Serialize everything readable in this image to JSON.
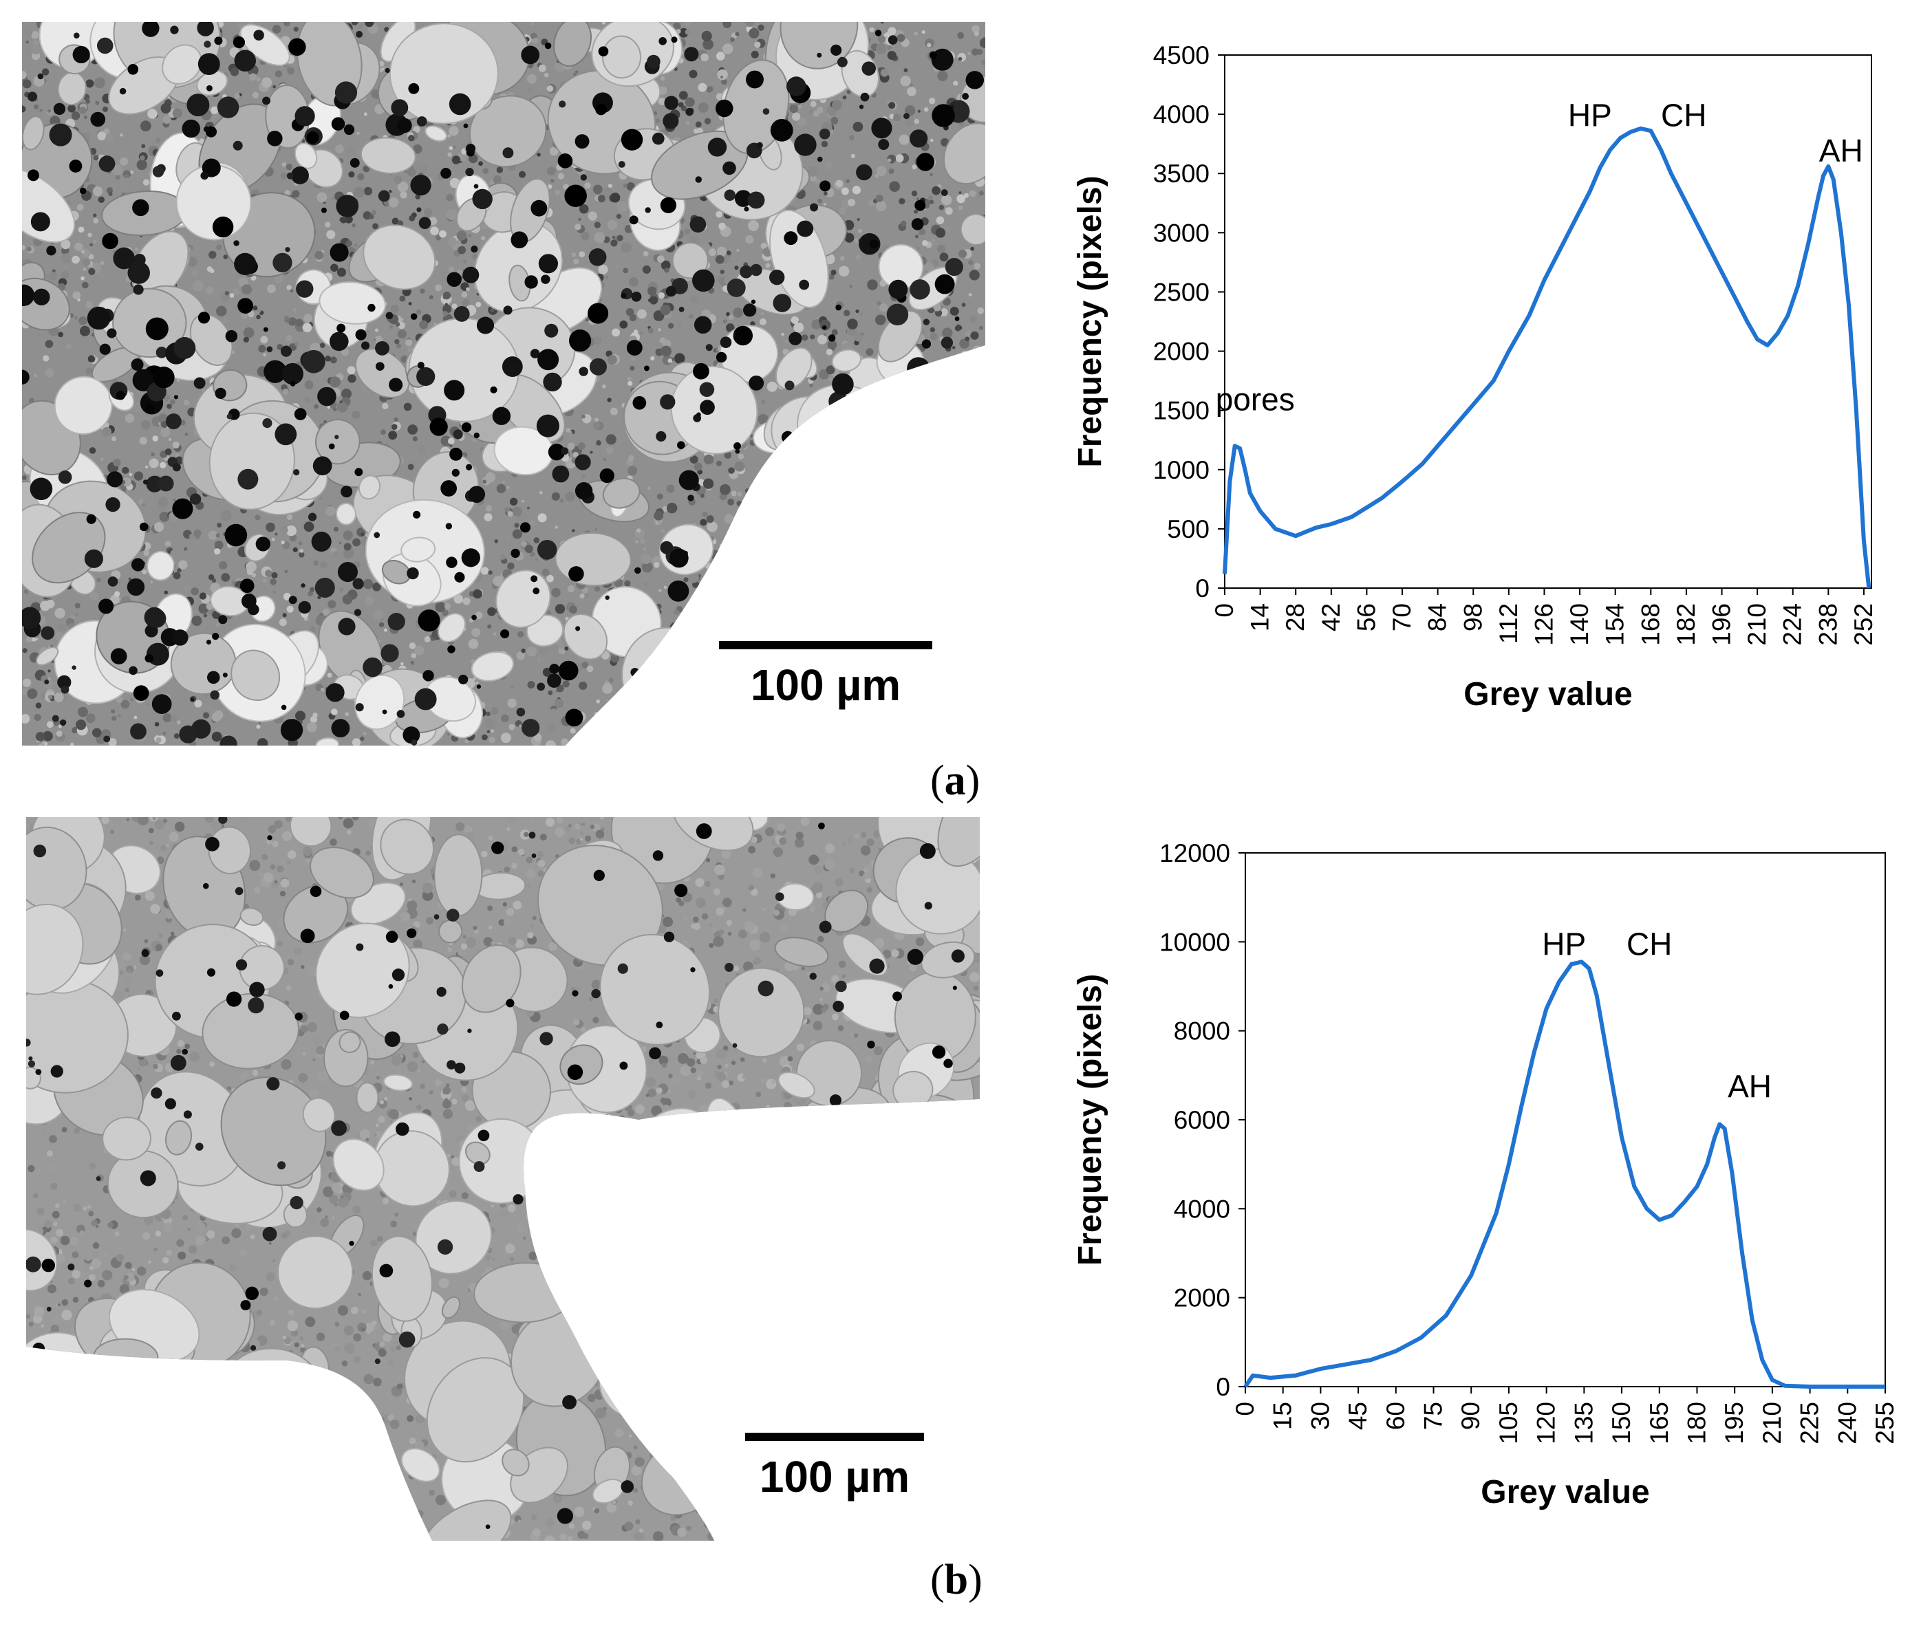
{
  "panels": [
    {
      "id": "a",
      "label": "a",
      "scale_bar": "100 µm",
      "chart_data": {
        "type": "line",
        "xlabel": "Grey value",
        "ylabel": "Frequency (pixels)",
        "xlim": [
          0,
          255
        ],
        "ylim": [
          0,
          4500
        ],
        "xticks": [
          0,
          14,
          28,
          42,
          56,
          70,
          84,
          98,
          112,
          126,
          140,
          154,
          168,
          182,
          196,
          210,
          224,
          238,
          252
        ],
        "yticks": [
          0,
          500,
          1000,
          1500,
          2000,
          2500,
          3000,
          3500,
          4000,
          4500
        ],
        "line_color": "#1f73d2",
        "x": [
          0,
          2,
          4,
          6,
          8,
          10,
          14,
          20,
          28,
          36,
          42,
          50,
          56,
          62,
          70,
          78,
          84,
          92,
          98,
          106,
          112,
          120,
          126,
          132,
          138,
          144,
          148,
          152,
          156,
          160,
          164,
          168,
          172,
          176,
          182,
          188,
          194,
          200,
          206,
          210,
          214,
          218,
          222,
          226,
          230,
          234,
          236,
          238,
          240,
          243,
          246,
          249,
          252,
          254
        ],
        "y": [
          120,
          900,
          1200,
          1180,
          1000,
          800,
          650,
          500,
          440,
          510,
          540,
          600,
          680,
          760,
          900,
          1050,
          1200,
          1400,
          1550,
          1750,
          2000,
          2300,
          2600,
          2850,
          3100,
          3350,
          3550,
          3700,
          3800,
          3850,
          3880,
          3860,
          3700,
          3500,
          3250,
          3000,
          2750,
          2500,
          2250,
          2100,
          2050,
          2150,
          2300,
          2550,
          2900,
          3300,
          3480,
          3560,
          3450,
          3000,
          2400,
          1500,
          400,
          0
        ],
        "annotations": [
          {
            "text": "pores",
            "x": 12,
            "y": 1500
          },
          {
            "text": "HP",
            "x": 144,
            "y": 3900
          },
          {
            "text": "CH",
            "x": 181,
            "y": 3900
          },
          {
            "text": "AH",
            "x": 243,
            "y": 3600
          }
        ]
      }
    },
    {
      "id": "b",
      "label": "b",
      "scale_bar": "100 µm",
      "chart_data": {
        "type": "line",
        "xlabel": "Grey value",
        "ylabel": "Frequency (pixels)",
        "xlim": [
          0,
          255
        ],
        "ylim": [
          0,
          12000
        ],
        "xticks": [
          0,
          15,
          30,
          45,
          60,
          75,
          90,
          105,
          120,
          135,
          150,
          165,
          180,
          195,
          210,
          225,
          240,
          255
        ],
        "yticks": [
          0,
          2000,
          4000,
          6000,
          8000,
          10000,
          12000
        ],
        "line_color": "#1f73d2",
        "x": [
          0,
          3,
          10,
          20,
          30,
          40,
          50,
          60,
          70,
          80,
          90,
          100,
          105,
          110,
          115,
          120,
          125,
          130,
          134,
          137,
          140,
          145,
          150,
          155,
          160,
          165,
          170,
          175,
          180,
          184,
          187,
          189,
          191,
          194,
          198,
          202,
          206,
          210,
          215,
          225,
          240,
          255
        ],
        "y": [
          0,
          250,
          200,
          250,
          400,
          500,
          600,
          800,
          1100,
          1600,
          2500,
          3900,
          5000,
          6300,
          7500,
          8500,
          9100,
          9500,
          9550,
          9400,
          8800,
          7200,
          5600,
          4500,
          4000,
          3750,
          3850,
          4150,
          4500,
          5000,
          5600,
          5900,
          5800,
          4800,
          3000,
          1500,
          600,
          150,
          20,
          0,
          0,
          0
        ],
        "annotations": [
          {
            "text": "HP",
            "x": 127,
            "y": 9700
          },
          {
            "text": "CH",
            "x": 161,
            "y": 9700
          },
          {
            "text": "AH",
            "x": 201,
            "y": 6500
          }
        ]
      }
    }
  ]
}
